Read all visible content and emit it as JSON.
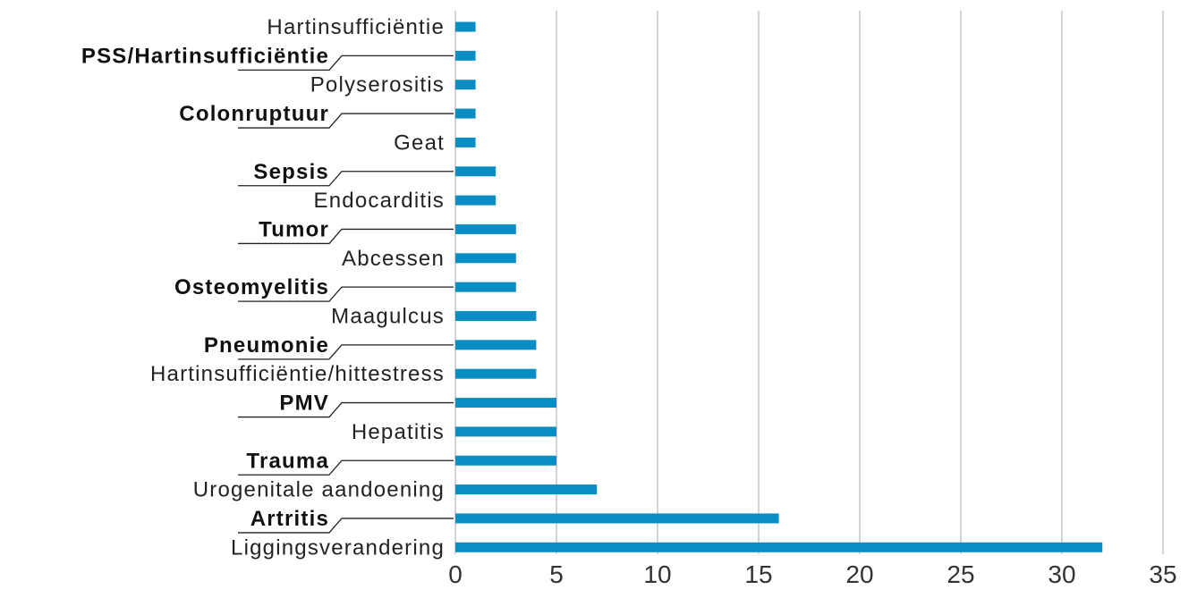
{
  "chart_data": {
    "type": "bar",
    "orientation": "horizontal",
    "categories": [
      "Hartinsufficiëntie",
      "PSS/Hartinsufficiëntie",
      "Polyserositis",
      "Colonruptuur",
      "Geat",
      "Sepsis",
      "Endocarditis",
      "Tumor",
      "Abcessen",
      "Osteomyelitis",
      "Maagulcus",
      "Pneumonie",
      "Hartinsufficiëntie/hittestress",
      "PMV",
      "Hepatitis",
      "Trauma",
      "Urogenitale aandoening",
      "Artritis",
      "Liggingsverandering"
    ],
    "values": [
      1,
      1,
      1,
      1,
      1,
      2,
      2,
      3,
      3,
      3,
      4,
      4,
      4,
      5,
      5,
      5,
      7,
      16,
      32
    ],
    "highlighted": [
      false,
      true,
      false,
      true,
      false,
      true,
      false,
      true,
      false,
      true,
      false,
      true,
      false,
      true,
      false,
      true,
      false,
      true,
      false
    ],
    "xlim": [
      0,
      35
    ],
    "xticks": [
      "0",
      "5",
      "10",
      "15",
      "20",
      "25",
      "30",
      "35"
    ],
    "grid": true,
    "bar_color": "#0a8cc4",
    "grid_color": "#d4d4d4"
  }
}
